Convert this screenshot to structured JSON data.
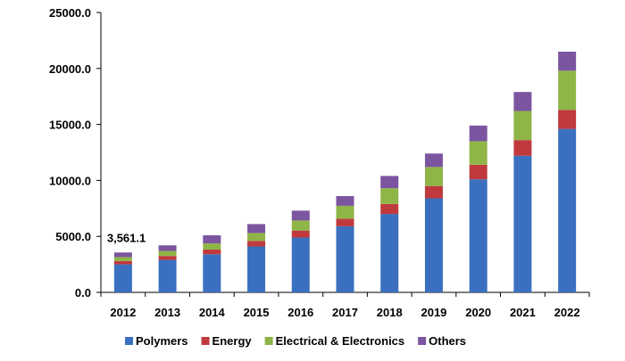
{
  "chart_data": {
    "type": "bar",
    "stacked": true,
    "title": "",
    "xlabel": "",
    "ylabel": "",
    "categories": [
      "2012",
      "2013",
      "2014",
      "2015",
      "2016",
      "2017",
      "2018",
      "2019",
      "2020",
      "2021",
      "2022"
    ],
    "series": [
      {
        "name": "Polymers",
        "color": "#3A70BF",
        "values": [
          2500,
          2900,
          3400,
          4100,
          4900,
          5900,
          7000,
          8400,
          10100,
          12200,
          14600
        ]
      },
      {
        "name": "Energy",
        "color": "#C0393D",
        "values": [
          300,
          350,
          420,
          500,
          620,
          680,
          900,
          1100,
          1300,
          1400,
          1700
        ]
      },
      {
        "name": "Electrical & Electronics",
        "color": "#8FB547",
        "values": [
          350,
          450,
          550,
          700,
          900,
          1150,
          1400,
          1700,
          2100,
          2600,
          3500
        ]
      },
      {
        "name": "Others",
        "color": "#7C55A0",
        "values": [
          411.1,
          500,
          730,
          800,
          880,
          870,
          1100,
          1200,
          1400,
          1700,
          1700
        ]
      }
    ],
    "ylim": [
      0,
      25000
    ],
    "yticks": [
      "0.0",
      "5000.0",
      "10000.0",
      "15000.0",
      "20000.0",
      "25000.0"
    ],
    "grid": false,
    "legend_position": "bottom",
    "annotations": [
      {
        "category": "2012",
        "text": "3,561.1"
      }
    ]
  }
}
